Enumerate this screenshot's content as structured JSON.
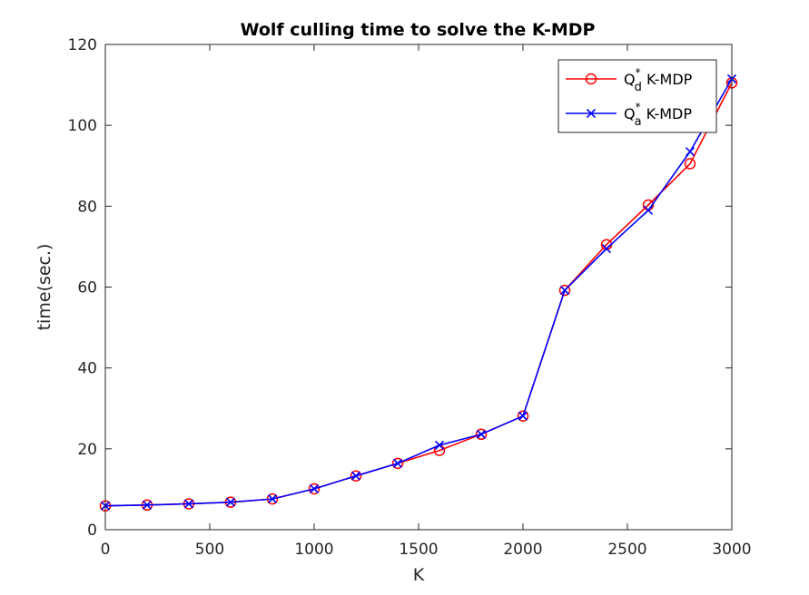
{
  "chart_data": {
    "type": "line",
    "title": "Wolf culling time to solve the K-MDP",
    "xlabel": "K",
    "ylabel": "time(sec.)",
    "xlim": [
      0,
      3000
    ],
    "ylim": [
      0,
      120
    ],
    "xticks": [
      0,
      500,
      1000,
      1500,
      2000,
      2500,
      3000
    ],
    "yticks": [
      0,
      20,
      40,
      60,
      80,
      100,
      120
    ],
    "grid": false,
    "legend_position": "top-right",
    "x": [
      0,
      200,
      400,
      600,
      800,
      1000,
      1200,
      1400,
      1600,
      1800,
      2000,
      2200,
      2400,
      2600,
      2800,
      3000
    ],
    "series": [
      {
        "name": "Q*d K-MDP",
        "legend": {
          "base": "Q",
          "sup": "*",
          "sub": "d",
          "suffix": " K-MDP"
        },
        "color": "#ff0000",
        "marker": "circle",
        "values": [
          5.9,
          6.1,
          6.4,
          6.8,
          7.6,
          10.1,
          13.3,
          16.4,
          19.6,
          23.6,
          28.1,
          59.2,
          70.5,
          80.3,
          90.5,
          110.5
        ]
      },
      {
        "name": "Q*a K-MDP",
        "legend": {
          "base": "Q",
          "sup": "*",
          "sub": "a",
          "suffix": " K-MDP"
        },
        "color": "#0000ff",
        "marker": "x",
        "values": [
          5.9,
          6.1,
          6.4,
          6.8,
          7.6,
          10.1,
          13.3,
          16.4,
          20.9,
          23.6,
          28.1,
          59.2,
          69.5,
          79.0,
          93.5,
          111.5
        ]
      }
    ]
  }
}
